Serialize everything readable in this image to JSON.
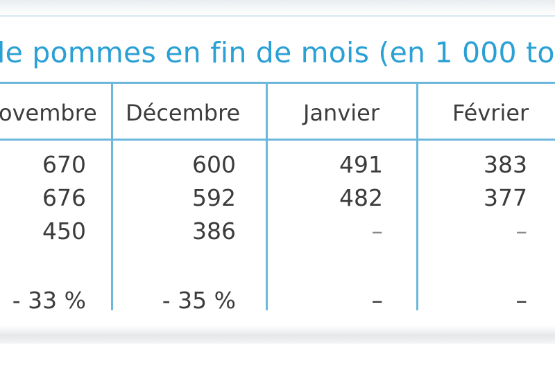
{
  "title": "le pommes en fin de mois (en 1 000 to",
  "columns": [
    "ovembre",
    "Décembre",
    "Janvier",
    "Février"
  ],
  "rows": [
    [
      "670",
      "600",
      "491",
      "383"
    ],
    [
      "676",
      "592",
      "482",
      "377"
    ],
    [
      "450",
      "386",
      "–",
      "–"
    ],
    [
      "- 33 %",
      "- 35 %",
      "–",
      "–"
    ]
  ],
  "colors": {
    "title": "#2aa0d5",
    "rules": "#6bb8dc",
    "text": "#3b3b3b"
  }
}
